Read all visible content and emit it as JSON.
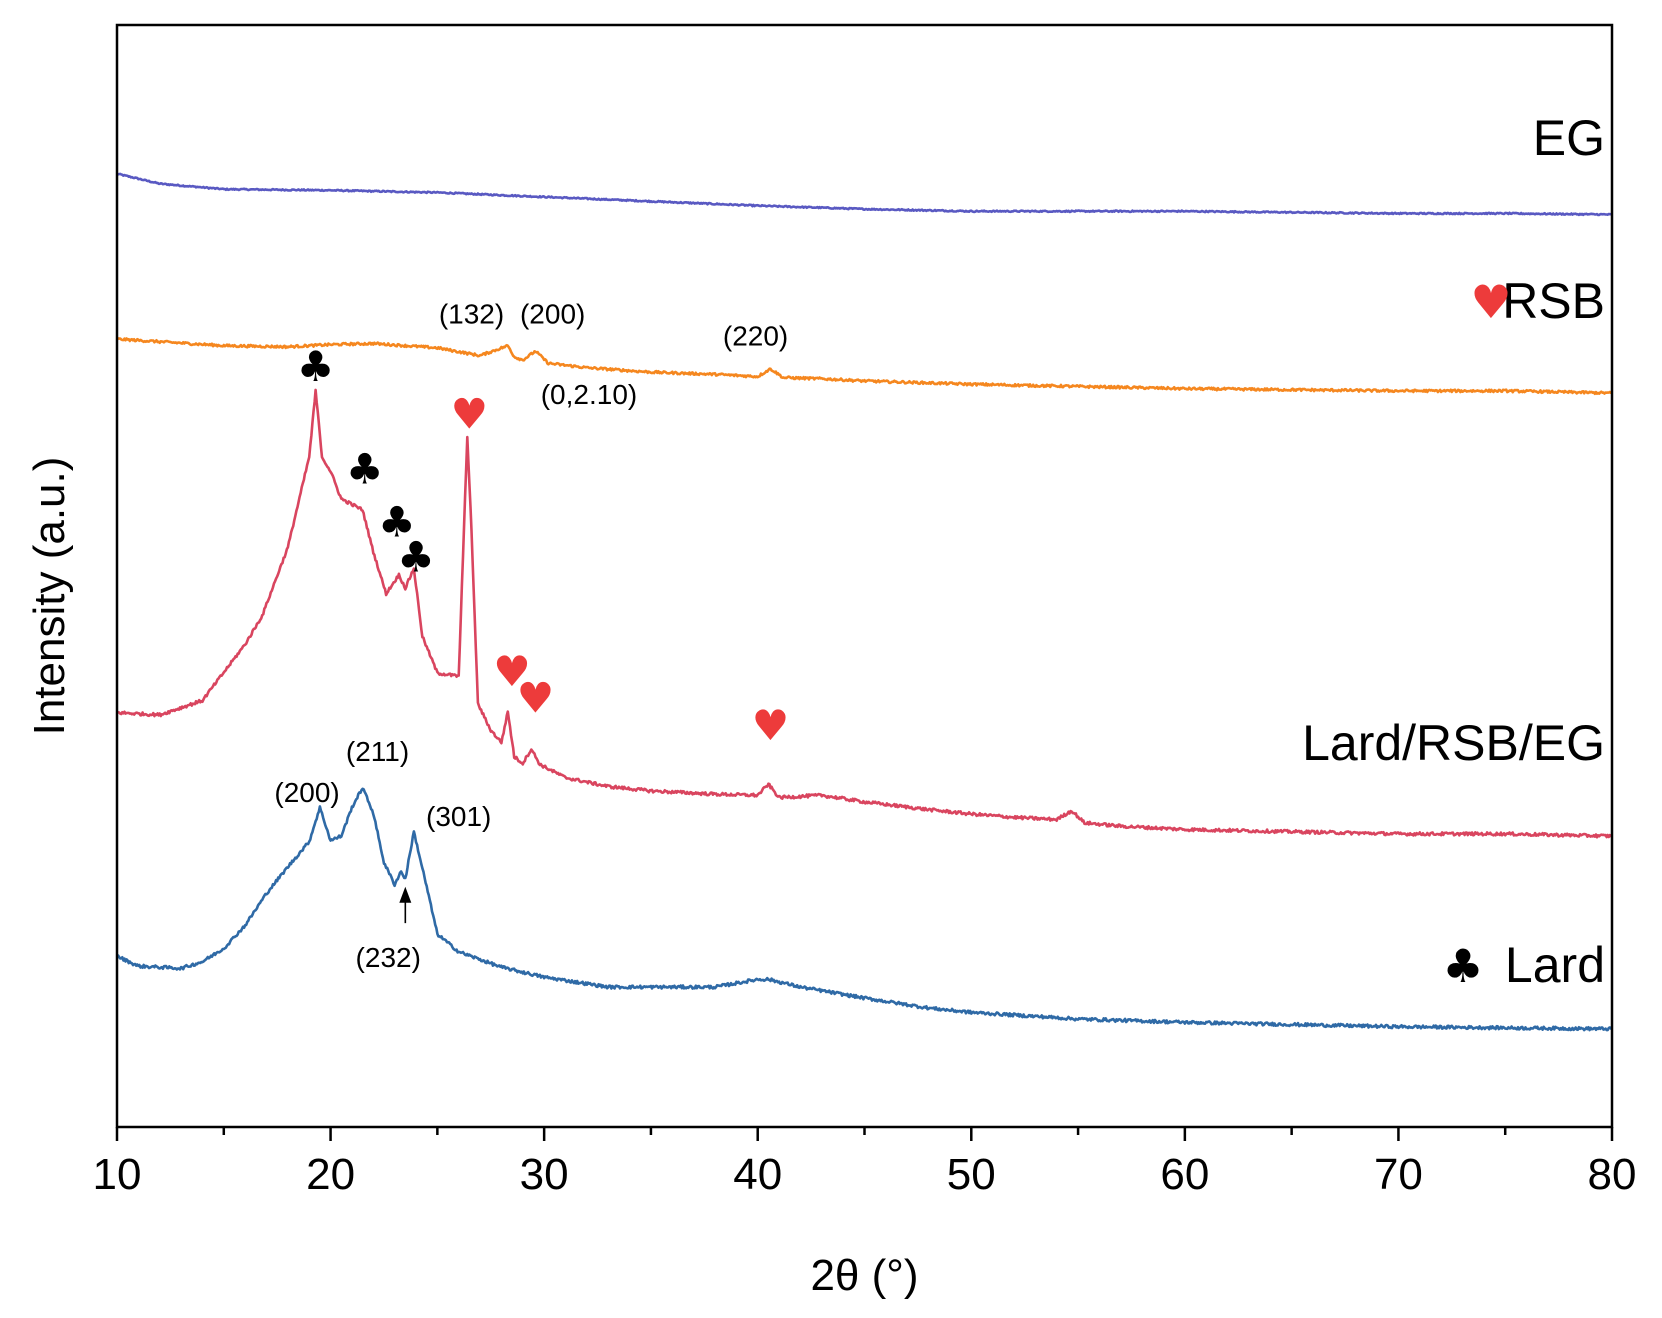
{
  "chart_data": {
    "type": "line",
    "title": "",
    "xlabel": "2θ (°)",
    "ylabel": "Intensity (a.u.)",
    "xlim": [
      10,
      80
    ],
    "x_ticks": [
      10,
      20,
      30,
      40,
      50,
      60,
      70,
      80
    ],
    "x_minor_step": 5,
    "ylim": [
      0,
      100
    ],
    "y_ticks_shown": false,
    "grid": false,
    "series": [
      {
        "name": "EG",
        "color": "#5959c2",
        "x": [
          10,
          12,
          15,
          20,
          25,
          30,
          35,
          40,
          45,
          50,
          55,
          60,
          65,
          70,
          75,
          80
        ],
        "y": [
          86.5,
          85.6,
          85.1,
          85.0,
          84.8,
          84.4,
          84.0,
          83.6,
          83.3,
          83.1,
          83.1,
          83.1,
          83.0,
          82.9,
          82.9,
          82.8
        ]
      },
      {
        "name": "RSB",
        "color": "#f5871f",
        "x": [
          10,
          15,
          18,
          20,
          22,
          25,
          27,
          28.3,
          28.6,
          29.0,
          29.6,
          30.2,
          32,
          35,
          38,
          40,
          40.6,
          41.2,
          43,
          45,
          50,
          55,
          60,
          65,
          70,
          75,
          80
        ],
        "y": [
          71.5,
          70.9,
          70.8,
          71.0,
          71.1,
          70.7,
          70.0,
          70.9,
          69.9,
          69.6,
          70.4,
          69.3,
          68.9,
          68.5,
          68.3,
          68.1,
          68.8,
          68.0,
          67.9,
          67.7,
          67.4,
          67.2,
          67.0,
          66.9,
          66.8,
          66.8,
          66.6
        ]
      },
      {
        "name": "Lard/RSB/EG",
        "color": "#d9455f",
        "x": [
          10,
          12,
          14,
          16,
          16.8,
          18,
          19,
          19.3,
          19.6,
          20,
          20.5,
          21.5,
          22,
          22.6,
          23.2,
          23.5,
          23.9,
          24.3,
          25,
          26,
          26.4,
          26.6,
          26.9,
          27.5,
          28,
          28.3,
          28.6,
          29,
          29.4,
          29.8,
          31,
          33,
          35,
          38,
          40,
          40.5,
          41,
          43,
          45,
          48,
          50,
          52,
          54,
          54.7,
          55.3,
          57,
          60,
          65,
          70,
          75,
          80
        ],
        "y": [
          37.6,
          37.4,
          38.7,
          43.8,
          46.4,
          52.6,
          60.8,
          66.8,
          60.8,
          59.5,
          57.0,
          56.0,
          52.2,
          48.4,
          50.1,
          48.9,
          50.7,
          44.5,
          41.2,
          40.9,
          62.7,
          54.0,
          38.4,
          36.0,
          34.9,
          37.7,
          33.6,
          33.0,
          34.3,
          32.9,
          31.7,
          30.9,
          30.5,
          30.2,
          30.1,
          31.1,
          29.9,
          30.1,
          29.5,
          28.8,
          28.4,
          28.1,
          27.9,
          28.7,
          27.6,
          27.3,
          27.0,
          26.8,
          26.6,
          26.6,
          26.4
        ]
      },
      {
        "name": "Lard",
        "color": "#2f6aa6",
        "x": [
          10,
          11,
          13,
          14,
          15,
          16,
          17,
          18,
          19,
          19.5,
          20,
          20.5,
          21,
          21.5,
          22,
          22.5,
          23,
          23.3,
          23.5,
          23.9,
          24.5,
          25,
          26,
          28,
          30,
          33,
          35,
          38,
          40,
          40.5,
          42,
          45,
          48,
          50,
          55,
          60,
          65,
          70,
          75,
          80
        ],
        "y": [
          15.5,
          14.6,
          14.4,
          15.0,
          16.2,
          18.3,
          21.2,
          23.6,
          25.9,
          29.0,
          26.0,
          26.4,
          29.0,
          30.8,
          28.5,
          24.0,
          22.0,
          23.2,
          22.5,
          26.8,
          21.8,
          17.5,
          15.9,
          14.5,
          13.6,
          12.7,
          12.7,
          12.7,
          13.4,
          13.4,
          12.7,
          11.7,
          10.8,
          10.4,
          9.8,
          9.5,
          9.3,
          9.1,
          9.0,
          8.9
        ]
      }
    ],
    "legend": {
      "placement": "right, beside each trace",
      "entries": [
        {
          "label": "EG",
          "marker": ""
        },
        {
          "label": "RSB",
          "marker": "heart"
        },
        {
          "label": "Lard/RSB/EG",
          "marker": ""
        },
        {
          "label": "Lard",
          "marker": "club"
        }
      ]
    },
    "annotations": [
      {
        "text": "(132)",
        "x": 26.6,
        "y": 72.9
      },
      {
        "text": "(200)",
        "x": 30.4,
        "y": 72.9
      },
      {
        "text": "(220)",
        "x": 39.9,
        "y": 70.9
      },
      {
        "text": "(0,2.10)",
        "x": 32.1,
        "y": 65.6
      },
      {
        "text": "(200)",
        "x": 18.9,
        "y": 29.5
      },
      {
        "text": "(211)",
        "x": 22.2,
        "y": 33.2
      },
      {
        "text": "(301)",
        "x": 26.0,
        "y": 27.3
      },
      {
        "text": "(232)",
        "x": 22.7,
        "y": 14.5
      }
    ],
    "peak_markers": [
      {
        "symbol": "club",
        "x": 19.3,
        "y": 67.7,
        "color": "#000000"
      },
      {
        "symbol": "club",
        "x": 21.6,
        "y": 58.4,
        "color": "#000000"
      },
      {
        "symbol": "club",
        "x": 23.1,
        "y": 53.6,
        "color": "#000000"
      },
      {
        "symbol": "club",
        "x": 24.0,
        "y": 50.4,
        "color": "#000000"
      },
      {
        "symbol": "heart",
        "x": 26.5,
        "y": 63.4,
        "color": "#ed3b3b"
      },
      {
        "symbol": "heart",
        "x": 28.5,
        "y": 40.0,
        "color": "#ed3b3b"
      },
      {
        "symbol": "heart",
        "x": 29.6,
        "y": 37.6,
        "color": "#ed3b3b"
      },
      {
        "symbol": "heart",
        "x": 40.6,
        "y": 35.1,
        "color": "#ed3b3b"
      }
    ],
    "arrow": {
      "label": "(232)",
      "x": 23.5,
      "y_from": 18.5,
      "y_to": 21.8
    }
  }
}
